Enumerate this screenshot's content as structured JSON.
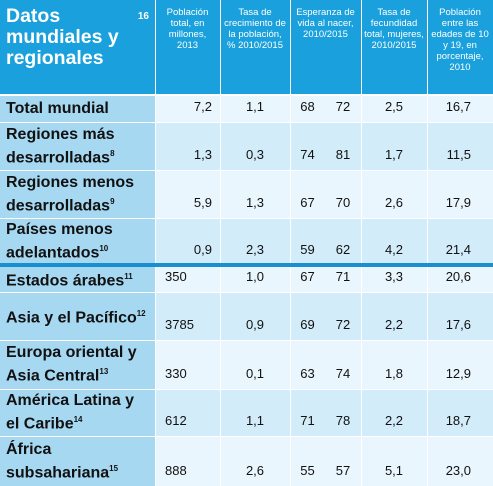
{
  "table": {
    "title": "Datos mundiales y regionales",
    "title_sup": "16",
    "columns": [
      "Población total, en millones, 2013",
      "Tasa de crecimiento de la población, % 2010/2015",
      "Esperanza de vida al nacer, 2010/2015",
      "Tasa de fecundidad total, mujeres, 2010/2015",
      "Población entre las edades de 10 y 19, en porcentaje, 2010"
    ],
    "rows": [
      {
        "label": "Total mundial",
        "sup": "",
        "pop": "7,2",
        "growth": "1,1",
        "life_a": "68",
        "life_b": "72",
        "fert": "2,5",
        "youth": "16,7"
      },
      {
        "label": "Regiones más desarrolladas",
        "sup": "8",
        "pop": "1,3",
        "growth": "0,3",
        "life_a": "74",
        "life_b": "81",
        "fert": "1,7",
        "youth": "11,5"
      },
      {
        "label": "Regiones menos desarrolladas",
        "sup": "9",
        "pop": "5,9",
        "growth": "1,3",
        "life_a": "67",
        "life_b": "70",
        "fert": "2,6",
        "youth": "17,9"
      },
      {
        "label": "Países menos adelantados",
        "sup": "10",
        "pop": "0,9",
        "growth": "2,3",
        "life_a": "59",
        "life_b": "62",
        "fert": "4,2",
        "youth": "21,4"
      },
      {
        "label": "Estados árabes",
        "sup": "11",
        "pop": "350",
        "growth": "1,0",
        "life_a": "67",
        "life_b": "71",
        "fert": "3,3",
        "youth": "20,6"
      },
      {
        "label": "Asia y el Pacífico",
        "sup": "12",
        "pop": "3785",
        "growth": "0,9",
        "life_a": "69",
        "life_b": "72",
        "fert": "2,2",
        "youth": "17,6"
      },
      {
        "label": "Europa oriental y Asia Central",
        "sup": "13",
        "pop": "330",
        "growth": "0,1",
        "life_a": "63",
        "life_b": "74",
        "fert": "1,8",
        "youth": "12,9"
      },
      {
        "label": "América Latina y el Caribe",
        "sup": "14",
        "pop": "612",
        "growth": "1,1",
        "life_a": "71",
        "life_b": "78",
        "fert": "2,2",
        "youth": "18,7"
      },
      {
        "label": "África subsahariana",
        "sup": "15",
        "pop": "888",
        "growth": "2,6",
        "life_a": "55",
        "life_b": "57",
        "fert": "5,1",
        "youth": "23,0"
      }
    ]
  },
  "colors": {
    "header": "#1aa0dc",
    "label_bg": "#a6d8f2",
    "value_light": "#eaf6fd",
    "value_dark": "#d3ecfa",
    "separator": "#1a8fd0"
  }
}
